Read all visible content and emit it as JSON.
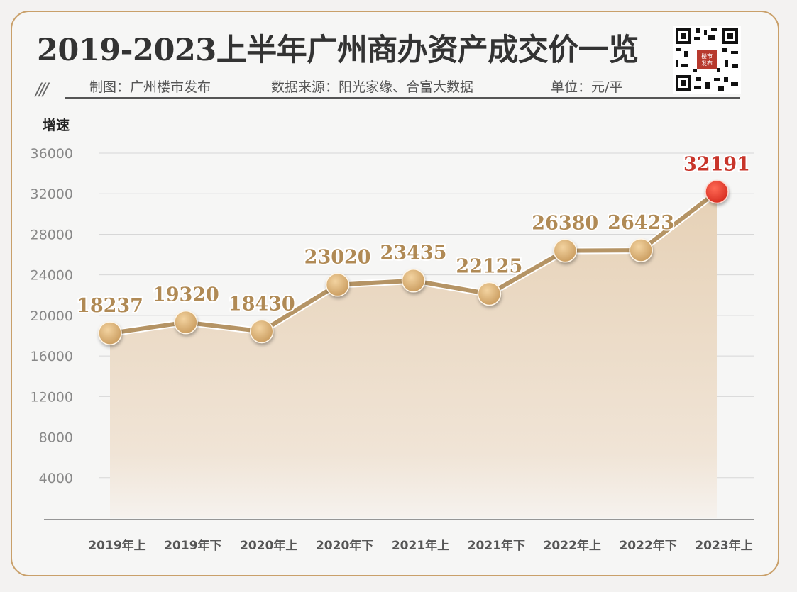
{
  "header": {
    "title": "2019-2023上半年广州商办资产成交价一览",
    "slashes": "///",
    "maker": "制图：广州楼市发布",
    "source": "数据来源：阳光家缘、合富大数据",
    "unit": "单位：元/平",
    "qr_badge": "楼市发布"
  },
  "chart_data": {
    "type": "area",
    "ylabel": "增速",
    "categories": [
      "2019年上",
      "2019年下",
      "2020年上",
      "2020年下",
      "2021年上",
      "2021年下",
      "2022年上",
      "2022年下",
      "2023年上"
    ],
    "values": [
      18237,
      19320,
      18430,
      23020,
      23435,
      22125,
      26380,
      26423,
      32191
    ],
    "data_labels": [
      "18237",
      "19320",
      "18430",
      "23020",
      "23435",
      "22125",
      "26380",
      "26423",
      "32191"
    ],
    "y_ticks": [
      4000,
      8000,
      12000,
      16000,
      20000,
      24000,
      28000,
      32000,
      36000
    ],
    "y_tick_labels": [
      "4000",
      "8000",
      "12000",
      "16000",
      "20000",
      "24000",
      "28000",
      "32000",
      "36000"
    ],
    "ylim": [
      0,
      36000
    ],
    "grid": true,
    "colors": {
      "line": "#b59465",
      "marker": "#d4a86a",
      "highlight": "#e23b2b",
      "label": "#b08a55",
      "highlight_label": "#c8352a",
      "fill": "#ead9c4"
    }
  }
}
